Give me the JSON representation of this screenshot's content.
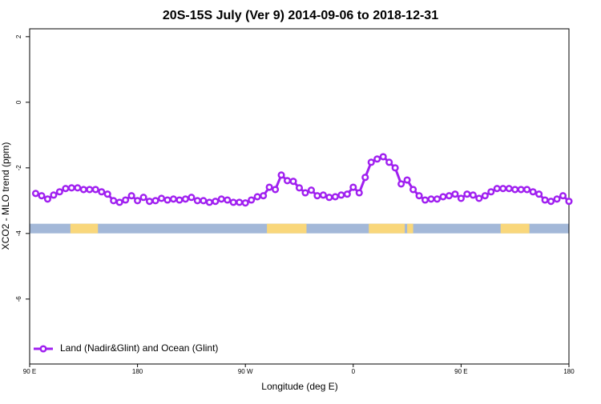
{
  "chart_data": {
    "type": "line",
    "title": "20S-15S July (Ver 9)   2014-09-06 to 2018-12-31",
    "xlabel": "Longitude (deg E)",
    "ylabel": "XCO2 - MLO trend (ppm)",
    "xlim": [
      90,
      540
    ],
    "xticks": [
      {
        "value": 90,
        "label": "90 E"
      },
      180,
      {
        "value": 270,
        "label": "90 W"
      },
      {
        "value": 360,
        "label": "0"
      },
      {
        "value": 450,
        "label": "90 E"
      },
      {
        "value": 540,
        "label": "180"
      }
    ],
    "ylim": [
      -7.98,
      2.24
    ],
    "yticks": [
      2,
      0,
      -2,
      -4,
      -6
    ],
    "legend": "bottom-left",
    "x": [
      95,
      100,
      105,
      110,
      115,
      120,
      125,
      130,
      135,
      140,
      145,
      150,
      155,
      160,
      165,
      170,
      175,
      180,
      185,
      190,
      195,
      200,
      205,
      210,
      215,
      220,
      225,
      230,
      235,
      240,
      245,
      250,
      255,
      260,
      265,
      270,
      275,
      280,
      285,
      290,
      295,
      300,
      305,
      310,
      315,
      320,
      325,
      330,
      335,
      340,
      345,
      350,
      355,
      360,
      365,
      370,
      375,
      380,
      385,
      390,
      395,
      400,
      405,
      410,
      415,
      420,
      425,
      430,
      435,
      440,
      445,
      450,
      455,
      460,
      465,
      470,
      475,
      480,
      485,
      490,
      495,
      500,
      505,
      510,
      515,
      520,
      525,
      530,
      535,
      540
    ],
    "series": [
      {
        "name": "Land (Nadir&Glint) and Ocean (Glint)",
        "color": "#a020f0",
        "values": [
          -2.78,
          -2.85,
          -2.95,
          -2.83,
          -2.73,
          -2.63,
          -2.61,
          -2.61,
          -2.66,
          -2.66,
          -2.66,
          -2.73,
          -2.8,
          -3.0,
          -3.05,
          -2.98,
          -2.85,
          -3.0,
          -2.9,
          -3.02,
          -3.0,
          -2.93,
          -2.98,
          -2.95,
          -2.98,
          -2.95,
          -2.9,
          -3.0,
          -3.0,
          -3.05,
          -3.02,
          -2.95,
          -2.98,
          -3.05,
          -3.05,
          -3.07,
          -2.98,
          -2.88,
          -2.85,
          -2.59,
          -2.66,
          -2.22,
          -2.39,
          -2.41,
          -2.61,
          -2.76,
          -2.68,
          -2.85,
          -2.83,
          -2.9,
          -2.88,
          -2.83,
          -2.8,
          -2.59,
          -2.76,
          -2.29,
          -1.83,
          -1.73,
          -1.66,
          -1.83,
          -2.0,
          -2.49,
          -2.37,
          -2.66,
          -2.85,
          -2.98,
          -2.95,
          -2.95,
          -2.88,
          -2.85,
          -2.8,
          -2.93,
          -2.8,
          -2.83,
          -2.93,
          -2.85,
          -2.73,
          -2.63,
          -2.63,
          -2.63,
          -2.66,
          -2.66,
          -2.66,
          -2.73,
          -2.8,
          -2.98,
          -3.02,
          -2.95,
          -2.85,
          -3.02
        ]
      }
    ],
    "surface_band": {
      "level": -3.85,
      "ocean_color": "#a3b8d8",
      "land_color": "#f9d77b",
      "land": [
        [
          124,
          147
        ],
        [
          288,
          321
        ],
        [
          373,
          403
        ],
        [
          405,
          410
        ],
        [
          483,
          507
        ]
      ]
    }
  }
}
